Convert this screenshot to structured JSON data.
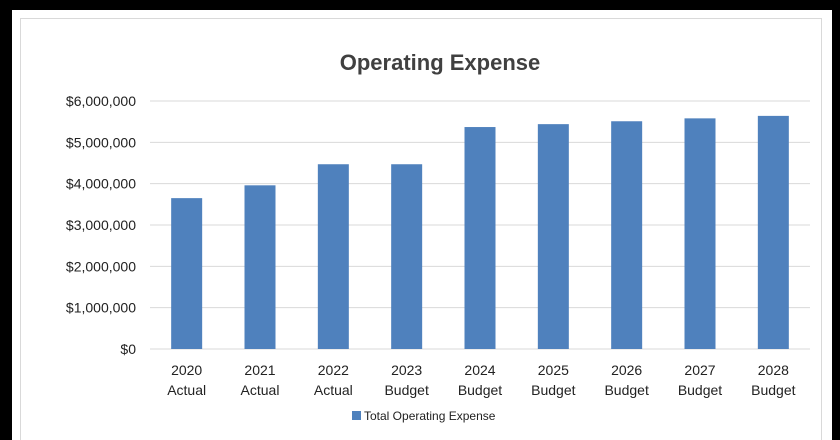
{
  "chart_data": {
    "type": "bar",
    "title": "Operating Expense",
    "categories": [
      [
        "2020",
        "Actual"
      ],
      [
        "2021",
        "Actual"
      ],
      [
        "2022",
        "Actual"
      ],
      [
        "2023",
        "Budget"
      ],
      [
        "2024",
        "Budget"
      ],
      [
        "2025",
        "Budget"
      ],
      [
        "2026",
        "Budget"
      ],
      [
        "2027",
        "Budget"
      ],
      [
        "2028",
        "Budget"
      ]
    ],
    "series": [
      {
        "name": "Total Operating Expense",
        "values": [
          3650000,
          3960000,
          4470000,
          4470000,
          5370000,
          5440000,
          5510000,
          5580000,
          5640000
        ]
      }
    ],
    "ylim": [
      0,
      6000000
    ],
    "yticks": [
      "$0",
      "$1,000,000",
      "$2,000,000",
      "$3,000,000",
      "$4,000,000",
      "$5,000,000",
      "$6,000,000"
    ],
    "ytick_values": [
      0,
      1000000,
      2000000,
      3000000,
      4000000,
      5000000,
      6000000
    ],
    "grid": true,
    "legend_position": "bottom",
    "colors": {
      "bar": "#4f81bd",
      "grid": "#d9d9d9",
      "text": "#222222",
      "title": "#404040"
    }
  }
}
